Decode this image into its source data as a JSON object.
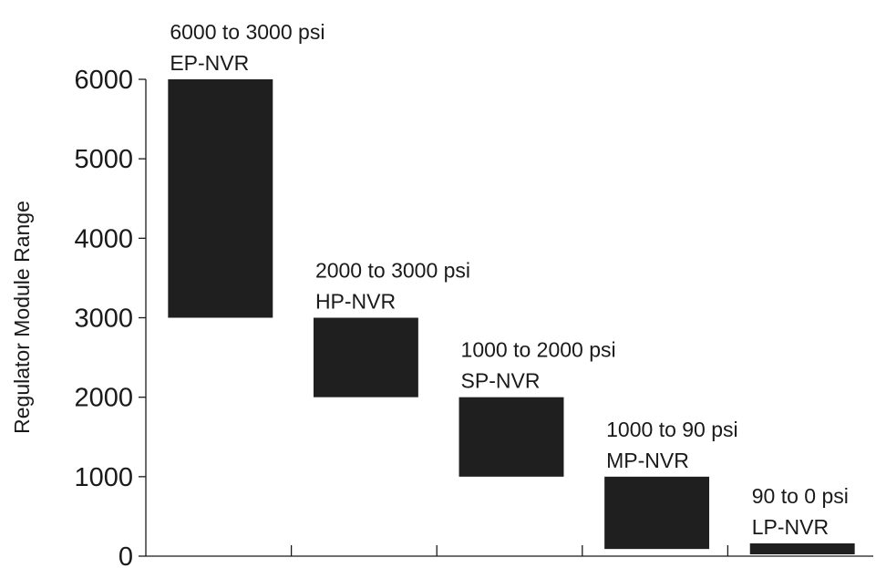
{
  "chart_data": {
    "type": "bar",
    "ylabel": "Regulator Module Range",
    "ylim": [
      0,
      6000
    ],
    "yticks": [
      0,
      1000,
      2000,
      3000,
      4000,
      5000,
      6000
    ],
    "grid": false,
    "bar_color": "#1f1f1f",
    "bars": [
      {
        "name": "EP-NVR",
        "range_label": "6000 to 3000 psi",
        "low": 3000,
        "high": 6000
      },
      {
        "name": "HP-NVR",
        "range_label": "2000 to 3000 psi",
        "low": 2000,
        "high": 3000
      },
      {
        "name": "SP-NVR",
        "range_label": "1000 to 2000 psi",
        "low": 1000,
        "high": 2000
      },
      {
        "name": "MP-NVR",
        "range_label": "1000 to 90 psi",
        "low": 90,
        "high": 1000
      },
      {
        "name": "LP-NVR",
        "range_label": "90 to 0 psi",
        "low": 0,
        "high": 90
      }
    ]
  }
}
